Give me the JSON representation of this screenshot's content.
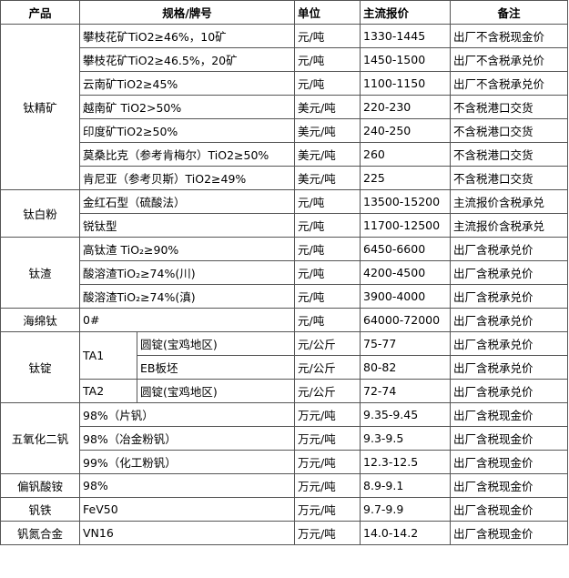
{
  "table": {
    "header": [
      "产品",
      "规格/牌号",
      "单位",
      "主流报价",
      "备注"
    ],
    "groups": [
      {
        "product": "钛精矿",
        "rows": [
          {
            "spec": "攀枝花矿TiO2≥46%，10矿",
            "unit": "元/吨",
            "price": "1330-1445",
            "note": "出厂不含税现金价"
          },
          {
            "spec": "攀枝花矿TiO2≥46.5%，20矿",
            "unit": "元/吨",
            "price": "1450-1500",
            "note": "出厂不含税承兑价"
          },
          {
            "spec": "云南矿TiO2≥45%",
            "unit": "元/吨",
            "price": "1100-1150",
            "note": "出厂不含税承兑价"
          },
          {
            "spec": "越南矿 TiO2>50%",
            "unit": "美元/吨",
            "price": "220-230",
            "note": "不含税港口交货"
          },
          {
            "spec": "印度矿TiO2≥50%",
            "unit": "美元/吨",
            "price": "240-250",
            "note": "不含税港口交货"
          },
          {
            "spec": "莫桑比克（参考肯梅尔）TiO2≥50%",
            "unit": "美元/吨",
            "price": "260",
            "note": "不含税港口交货"
          },
          {
            "spec": "肯尼亚（参考贝斯）TiO2≥49%",
            "unit": "美元/吨",
            "price": "225",
            "note": "不含税港口交货"
          }
        ]
      },
      {
        "product": "钛白粉",
        "rows": [
          {
            "spec": "金红石型（硫酸法）",
            "unit": "元/吨",
            "price": "13500-15200",
            "note": "主流报价含税承兑"
          },
          {
            "spec": "锐钛型",
            "unit": "元/吨",
            "price": "11700-12500",
            "note": "主流报价含税承兑"
          }
        ]
      },
      {
        "product": "钛渣",
        "rows": [
          {
            "spec": "高钛渣 TiO₂≥90%",
            "unit": "元/吨",
            "price": "6450-6600",
            "note": "出厂含税承兑价"
          },
          {
            "spec": "酸溶渣TiO₂≥74%(川)",
            "unit": "元/吨",
            "price": "4200-4500",
            "note": "出厂含税承兑价"
          },
          {
            "spec": "酸溶渣TiO₂≥74%(滇)",
            "unit": "元/吨",
            "price": "3900-4000",
            "note": "出厂含税承兑价"
          }
        ]
      },
      {
        "product": "海绵钛",
        "rows": [
          {
            "spec": "0#",
            "unit": "元/吨",
            "price": "64000-72000",
            "note": "出厂含税承兑价"
          }
        ]
      },
      {
        "product": "钛锭",
        "subgroups": [
          {
            "grade": "TA1",
            "rows": [
              {
                "spec": "圆锭(宝鸡地区)",
                "unit": "元/公斤",
                "price": "75-77",
                "note": "出厂含税承兑价"
              },
              {
                "spec": "EB板坯",
                "unit": "元/公斤",
                "price": "80-82",
                "note": "出厂含税承兑价"
              }
            ]
          },
          {
            "grade": "TA2",
            "rows": [
              {
                "spec": "圆锭(宝鸡地区)",
                "unit": "元/公斤",
                "price": "72-74",
                "note": "出厂含税承兑价"
              }
            ]
          }
        ]
      },
      {
        "product": "五氧化二钒",
        "rows": [
          {
            "spec": "98%（片钒）",
            "unit": "万元/吨",
            "price": "9.35-9.45",
            "note": "出厂含税现金价"
          },
          {
            "spec": "98%（冶金粉钒）",
            "unit": "万元/吨",
            "price": "9.3-9.5",
            "note": "出厂含税现金价"
          },
          {
            "spec": "99%（化工粉钒）",
            "unit": "万元/吨",
            "price": "12.3-12.5",
            "note": "出厂含税现金价"
          }
        ]
      },
      {
        "product": "偏钒酸铵",
        "rows": [
          {
            "spec": "98%",
            "unit": "万元/吨",
            "price": "8.9-9.1",
            "note": "出厂含税现金价"
          }
        ]
      },
      {
        "product": "钒铁",
        "rows": [
          {
            "spec": "FeV50",
            "unit": "万元/吨",
            "price": "9.7-9.9",
            "note": "出厂含税现金价"
          }
        ]
      },
      {
        "product": "钒氮合金",
        "rows": [
          {
            "spec": "VN16",
            "unit": "万元/吨",
            "price": "14.0-14.2",
            "note": "出厂含税现金价"
          }
        ]
      }
    ]
  }
}
